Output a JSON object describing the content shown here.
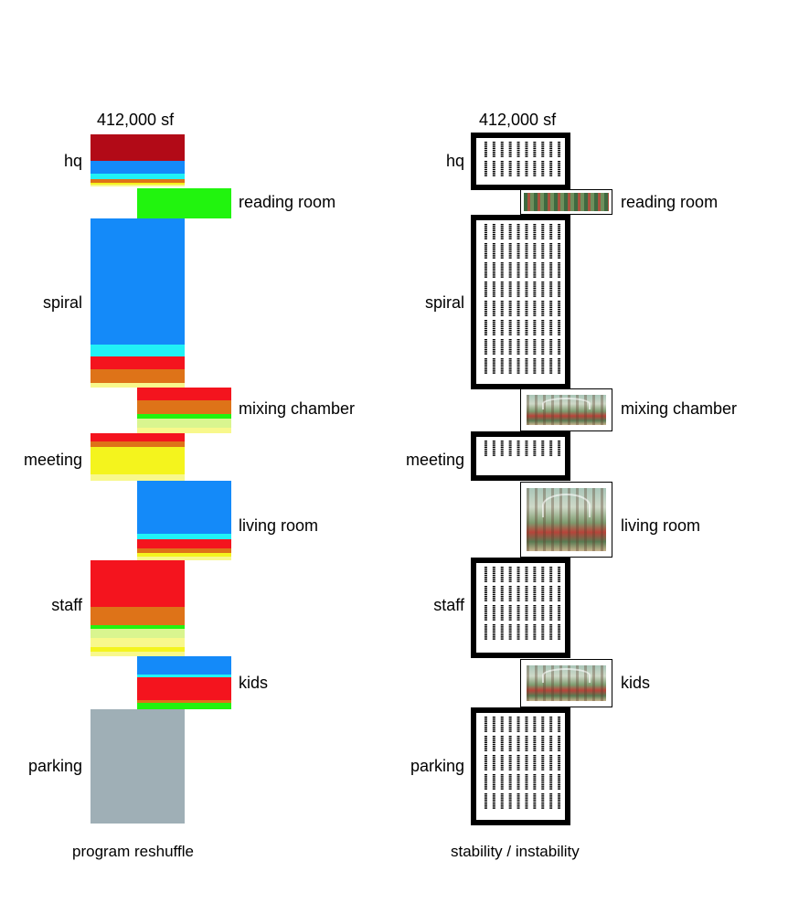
{
  "left": {
    "total": "412,000 sf",
    "caption": "program reshuffle",
    "labels": {
      "hq": "hq",
      "reading_room": "reading room",
      "spiral": "spiral",
      "mixing_chamber": "mixing chamber",
      "meeting": "meeting",
      "living_room": "living room",
      "staff": "staff",
      "kids": "kids",
      "parking": "parking"
    }
  },
  "right": {
    "total": "412,000 sf",
    "caption": "stability / instability",
    "labels": {
      "hq": "hq",
      "reading_room": "reading room",
      "spiral": "spiral",
      "mixing_chamber": "mixing chamber",
      "meeting": "meeting",
      "living_room": "living room",
      "staff": "staff",
      "kids": "kids",
      "parking": "parking"
    }
  },
  "colors": {
    "dark_red": "#b20a17",
    "red": "#f4141e",
    "blue": "#148af9",
    "cyan": "#21f1f6",
    "orange": "#de7318",
    "green": "#21f40e",
    "yellow": "#f4f41d",
    "pale_yellow": "#f8f88c",
    "light_green": "#d9f58f",
    "gray": "#9fafb6"
  },
  "program": {
    "hq": [
      "dark_red",
      "blue",
      "cyan",
      "orange",
      "yellow",
      "pale_yellow"
    ],
    "reading_room": [
      "green"
    ],
    "spiral": [
      "blue",
      "cyan",
      "red",
      "orange",
      "pale_yellow"
    ],
    "mixing_chamber": [
      "red",
      "orange",
      "green",
      "light_green",
      "pale_yellow"
    ],
    "meeting": [
      "red",
      "orange",
      "yellow",
      "pale_yellow"
    ],
    "living_room": [
      "blue",
      "cyan",
      "red",
      "orange",
      "yellow",
      "pale_yellow"
    ],
    "staff": [
      "red",
      "orange",
      "green",
      "light_green",
      "pale_yellow",
      "yellow",
      "pale_yellow"
    ],
    "kids": [
      "blue",
      "cyan",
      "red",
      "orange",
      "green"
    ],
    "parking": [
      "gray"
    ]
  },
  "stability": {
    "hq": "stable",
    "reading_room": "unstable",
    "spiral": "stable",
    "mixing_chamber": "unstable",
    "meeting": "stable",
    "living_room": "unstable",
    "staff": "stable",
    "kids": "unstable",
    "parking": "stable"
  }
}
